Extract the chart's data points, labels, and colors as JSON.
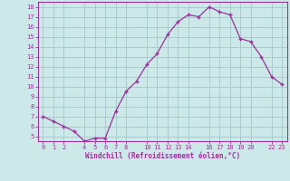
{
  "x": [
    0,
    1,
    2,
    3,
    4,
    5,
    6,
    7,
    8,
    9,
    10,
    11,
    12,
    13,
    14,
    15,
    16,
    17,
    18,
    19,
    20,
    21,
    22,
    23
  ],
  "y": [
    7.0,
    6.5,
    6.0,
    5.5,
    4.5,
    4.8,
    4.8,
    7.5,
    9.5,
    10.5,
    12.2,
    13.3,
    15.2,
    16.5,
    17.2,
    17.0,
    18.0,
    17.5,
    17.2,
    14.8,
    14.5,
    13.0,
    11.0,
    10.2
  ],
  "line_color": "#993399",
  "marker": "+",
  "marker_size": 3.5,
  "marker_lw": 1.0,
  "bg_color": "#cce8e8",
  "grid_color": "#aacccc",
  "tick_label_color": "#993399",
  "xlabel": "Windchill (Refroidissement éolien,°C)",
  "xlabel_color": "#993399",
  "ylim": [
    4.5,
    18.5
  ],
  "xlim": [
    -0.5,
    23.5
  ],
  "yticks": [
    5,
    6,
    7,
    8,
    9,
    10,
    11,
    12,
    13,
    14,
    15,
    16,
    17,
    18
  ],
  "xticks": [
    0,
    1,
    2,
    4,
    5,
    6,
    7,
    8,
    10,
    11,
    12,
    13,
    14,
    16,
    17,
    18,
    19,
    20,
    22,
    23
  ],
  "spine_color": "#993399",
  "line_width": 0.9
}
